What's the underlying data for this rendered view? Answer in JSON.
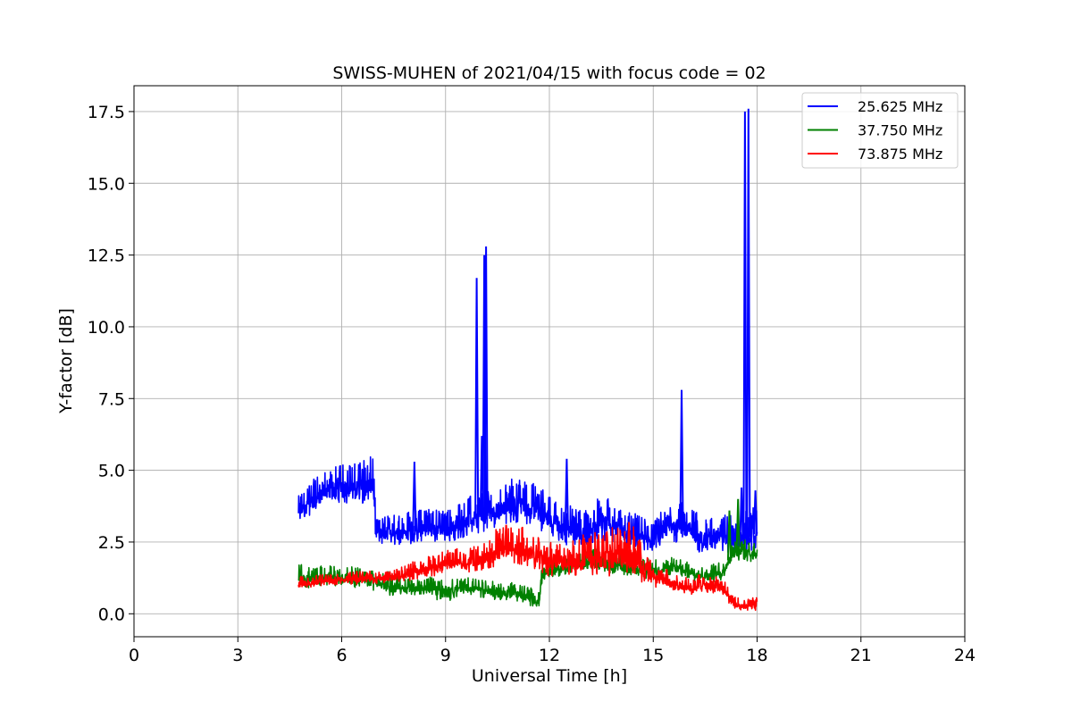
{
  "chart_data": {
    "type": "line",
    "title": "SWISS-MUHEN of 2021/04/15 with focus code = 02",
    "xlabel": "Universal Time [h]",
    "ylabel": "Y-factor [dB]",
    "xlim": [
      0,
      24
    ],
    "ylim": [
      -0.8,
      18.4
    ],
    "xticks": [
      0,
      3,
      6,
      9,
      12,
      15,
      18,
      21,
      24
    ],
    "xtick_labels": [
      "0",
      "3",
      "6",
      "9",
      "12",
      "15",
      "18",
      "21",
      "24"
    ],
    "yticks": [
      0,
      2.5,
      5,
      7.5,
      10,
      12.5,
      15,
      17.5
    ],
    "ytick_labels": [
      "0.0",
      "2.5",
      "5.0",
      "7.5",
      "10.0",
      "12.5",
      "15.0",
      "17.5"
    ],
    "grid": true,
    "legend_position": "top-right",
    "series": [
      {
        "name": "25.625 MHz",
        "color": "#0000ff",
        "band": [
          [
            4.75,
            2.8,
            4.1
          ],
          [
            5.0,
            3.1,
            4.5
          ],
          [
            5.5,
            3.3,
            5.0
          ],
          [
            6.0,
            3.4,
            5.2
          ],
          [
            6.5,
            3.5,
            5.3
          ],
          [
            6.9,
            3.4,
            5.5
          ],
          [
            7.0,
            2.2,
            3.3
          ],
          [
            7.5,
            2.1,
            3.5
          ],
          [
            8.0,
            2.1,
            3.6
          ],
          [
            8.5,
            2.2,
            3.7
          ],
          [
            9.0,
            2.2,
            3.6
          ],
          [
            9.5,
            2.3,
            4.0
          ],
          [
            10.0,
            2.4,
            4.3
          ],
          [
            10.5,
            2.7,
            4.5
          ],
          [
            11.0,
            2.8,
            4.8
          ],
          [
            11.5,
            2.6,
            4.6
          ],
          [
            12.0,
            2.4,
            4.2
          ],
          [
            12.5,
            2.0,
            3.8
          ],
          [
            13.0,
            2.0,
            3.6
          ],
          [
            13.5,
            2.1,
            4.2
          ],
          [
            14.0,
            2.0,
            3.8
          ],
          [
            14.5,
            2.0,
            3.5
          ],
          [
            15.0,
            1.8,
            3.2
          ],
          [
            15.5,
            2.2,
            4.0
          ],
          [
            16.0,
            2.0,
            3.8
          ],
          [
            16.5,
            1.7,
            3.4
          ],
          [
            17.0,
            1.8,
            3.6
          ],
          [
            17.5,
            1.6,
            3.5
          ],
          [
            18.0,
            1.8,
            3.8
          ]
        ],
        "spikes": [
          [
            8.1,
            5.3
          ],
          [
            9.9,
            11.7
          ],
          [
            10.05,
            6.2
          ],
          [
            10.12,
            12.5
          ],
          [
            10.17,
            12.8
          ],
          [
            12.5,
            5.4
          ],
          [
            15.82,
            7.8
          ],
          [
            17.65,
            17.5
          ],
          [
            17.75,
            17.6
          ],
          [
            17.55,
            4.4
          ],
          [
            17.95,
            4.3
          ]
        ]
      },
      {
        "name": "37.750 MHz",
        "color": "#008000",
        "band": [
          [
            4.75,
            0.8,
            1.8
          ],
          [
            5.0,
            0.7,
            1.6
          ],
          [
            5.5,
            0.8,
            1.7
          ],
          [
            6.0,
            0.8,
            1.7
          ],
          [
            6.5,
            0.7,
            1.6
          ],
          [
            7.0,
            0.6,
            1.6
          ],
          [
            7.5,
            0.4,
            1.4
          ],
          [
            8.0,
            0.5,
            1.3
          ],
          [
            8.5,
            0.4,
            1.3
          ],
          [
            9.0,
            0.2,
            1.2
          ],
          [
            9.5,
            0.5,
            1.3
          ],
          [
            10.0,
            0.4,
            1.2
          ],
          [
            10.5,
            0.3,
            1.1
          ],
          [
            11.0,
            0.3,
            1.1
          ],
          [
            11.5,
            0.1,
            0.9
          ],
          [
            11.7,
            0.0,
            0.8
          ],
          [
            11.8,
            1.0,
            1.8
          ],
          [
            12.5,
            1.2,
            2.1
          ],
          [
            13.0,
            1.3,
            2.2
          ],
          [
            13.5,
            1.2,
            2.3
          ],
          [
            14.0,
            1.2,
            2.1
          ],
          [
            14.5,
            1.1,
            2.0
          ],
          [
            15.0,
            1.0,
            1.9
          ],
          [
            15.5,
            1.2,
            2.0
          ],
          [
            16.0,
            1.1,
            1.8
          ],
          [
            16.5,
            0.8,
            1.7
          ],
          [
            17.0,
            1.0,
            1.8
          ],
          [
            17.3,
            1.6,
            2.6
          ],
          [
            17.6,
            1.7,
            2.6
          ],
          [
            18.0,
            1.5,
            2.5
          ]
        ],
        "spikes": [
          [
            17.2,
            3.6
          ],
          [
            17.45,
            4.0
          ]
        ]
      },
      {
        "name": "73.875 MHz",
        "color": "#ff0000",
        "band": [
          [
            4.75,
            0.7,
            1.3
          ],
          [
            5.0,
            0.8,
            1.3
          ],
          [
            5.5,
            0.9,
            1.4
          ],
          [
            6.0,
            0.9,
            1.4
          ],
          [
            6.5,
            0.9,
            1.5
          ],
          [
            7.0,
            0.9,
            1.5
          ],
          [
            7.5,
            1.0,
            1.5
          ],
          [
            8.0,
            1.0,
            1.8
          ],
          [
            8.5,
            1.1,
            2.0
          ],
          [
            9.0,
            1.2,
            2.2
          ],
          [
            9.5,
            1.2,
            2.3
          ],
          [
            10.0,
            1.3,
            2.4
          ],
          [
            10.5,
            1.3,
            3.0
          ],
          [
            11.0,
            1.4,
            3.2
          ],
          [
            11.5,
            1.3,
            2.8
          ],
          [
            12.0,
            1.0,
            2.5
          ],
          [
            12.5,
            1.1,
            2.4
          ],
          [
            13.0,
            0.9,
            2.8
          ],
          [
            13.5,
            0.9,
            2.9
          ],
          [
            14.0,
            0.8,
            3.1
          ],
          [
            14.5,
            0.7,
            3.2
          ],
          [
            15.0,
            0.7,
            1.8
          ],
          [
            15.5,
            0.6,
            1.5
          ],
          [
            16.0,
            0.5,
            1.3
          ],
          [
            16.5,
            0.6,
            1.4
          ],
          [
            17.0,
            0.5,
            1.3
          ],
          [
            17.3,
            0.1,
            0.6
          ],
          [
            17.6,
            0.0,
            0.5
          ],
          [
            18.0,
            0.0,
            0.6
          ]
        ],
        "spikes": [
          [
            10.75,
            3.1
          ],
          [
            14.3,
            3.2
          ]
        ]
      }
    ]
  }
}
